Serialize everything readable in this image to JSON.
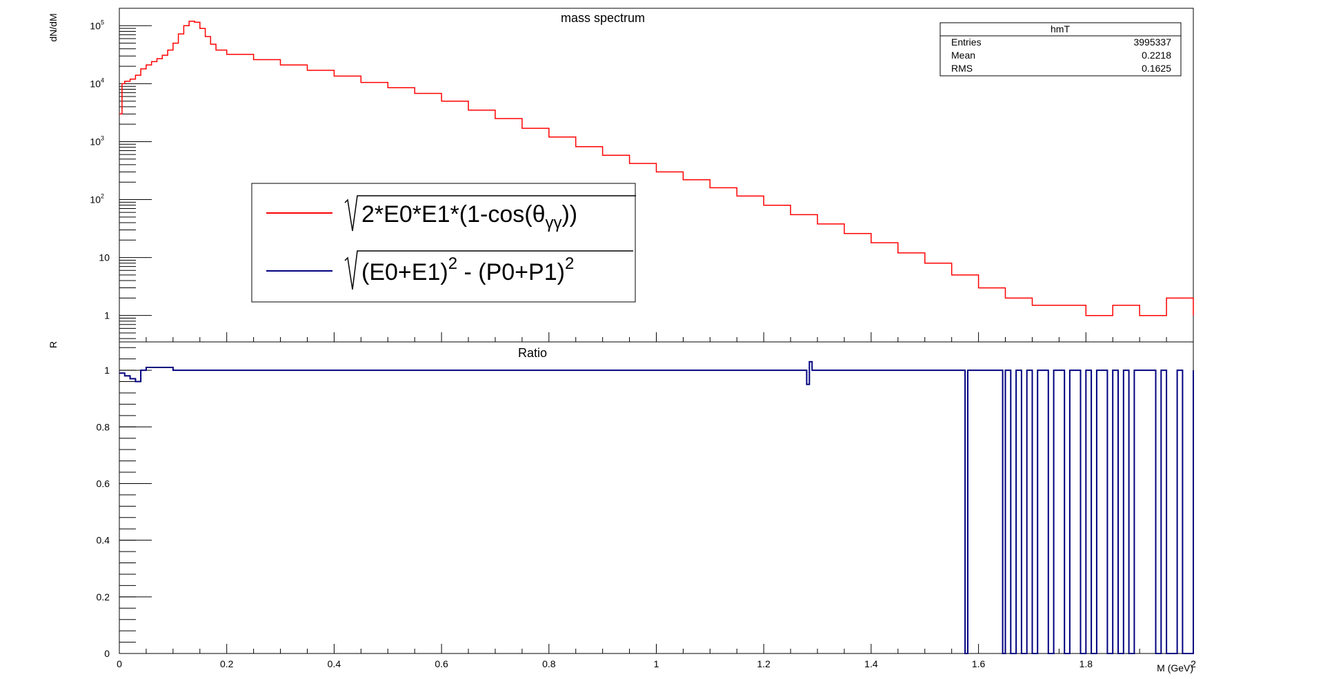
{
  "colors": {
    "red": "#ff0000",
    "blue": "#00007f",
    "axis": "#000000",
    "bg": "#ffffff"
  },
  "top_panel": {
    "title": "mass spectrum",
    "y_label": "dN/dM",
    "y_ticks": [
      {
        "value": 1,
        "base": "1",
        "exp": ""
      },
      {
        "value": 10,
        "base": "10",
        "exp": ""
      },
      {
        "value": 100,
        "base": "10",
        "exp": "2"
      },
      {
        "value": 1000,
        "base": "10",
        "exp": "3"
      },
      {
        "value": 10000,
        "base": "10",
        "exp": "4"
      },
      {
        "value": 100000,
        "base": "10",
        "exp": "5"
      }
    ],
    "stats_box": {
      "name": "hmT",
      "rows": [
        {
          "label": "Entries",
          "value": "3995337"
        },
        {
          "label": "Mean",
          "value": "0.2218"
        },
        {
          "label": "RMS",
          "value": "0.1625"
        }
      ]
    },
    "legend": {
      "entries": [
        {
          "color_key": "red",
          "formula_main": "2*E0*E1*(1-cos(θ",
          "formula_sub": "γγ",
          "formula_tail": "))"
        },
        {
          "color_key": "blue",
          "formula_a": "(E0+E1)",
          "formula_sup1": "2",
          "formula_b": " - (P0+P1)",
          "formula_sup2": "2"
        }
      ]
    }
  },
  "bottom_panel": {
    "title": "Ratio",
    "y_label": "R",
    "x_label": "M (GeV)",
    "y_ticks": [
      "0",
      "0.2",
      "0.4",
      "0.6",
      "0.8",
      "1"
    ],
    "x_ticks": [
      "0",
      "0.2",
      "0.4",
      "0.6",
      "0.8",
      "1",
      "1.2",
      "1.4",
      "1.6",
      "1.8",
      "2"
    ]
  },
  "chart_data": [
    {
      "type": "line",
      "title": "mass spectrum",
      "ylabel": "dN/dM",
      "xlim": [
        0,
        2
      ],
      "ylim": [
        0.35,
        200000
      ],
      "log_y": true,
      "grid": false,
      "histogram_step": true,
      "legend_position": "center-left",
      "series": [
        {
          "color": "#ff0000",
          "points": [
            [
              0.0,
              3000
            ],
            [
              0.005,
              10000
            ],
            [
              0.01,
              11000
            ],
            [
              0.02,
              12000
            ],
            [
              0.03,
              14000
            ],
            [
              0.04,
              18000
            ],
            [
              0.05,
              21000
            ],
            [
              0.06,
              24000
            ],
            [
              0.07,
              27000
            ],
            [
              0.08,
              31000
            ],
            [
              0.09,
              38000
            ],
            [
              0.1,
              50000
            ],
            [
              0.11,
              72000
            ],
            [
              0.12,
              100000
            ],
            [
              0.13,
              120000
            ],
            [
              0.14,
              115000
            ],
            [
              0.15,
              90000
            ],
            [
              0.16,
              65000
            ],
            [
              0.17,
              48000
            ],
            [
              0.18,
              38000
            ],
            [
              0.2,
              32000
            ],
            [
              0.25,
              26000
            ],
            [
              0.3,
              21000
            ],
            [
              0.35,
              17000
            ],
            [
              0.4,
              13500
            ],
            [
              0.45,
              10500
            ],
            [
              0.5,
              8500
            ],
            [
              0.55,
              6800
            ],
            [
              0.6,
              5000
            ],
            [
              0.65,
              3500
            ],
            [
              0.7,
              2500
            ],
            [
              0.75,
              1700
            ],
            [
              0.8,
              1200
            ],
            [
              0.85,
              820
            ],
            [
              0.9,
              580
            ],
            [
              0.95,
              420
            ],
            [
              1.0,
              300
            ],
            [
              1.05,
              220
            ],
            [
              1.1,
              160
            ],
            [
              1.15,
              115
            ],
            [
              1.2,
              80
            ],
            [
              1.25,
              55
            ],
            [
              1.3,
              38
            ],
            [
              1.35,
              26
            ],
            [
              1.4,
              18
            ],
            [
              1.45,
              12
            ],
            [
              1.5,
              8
            ],
            [
              1.55,
              5
            ],
            [
              1.6,
              3
            ],
            [
              1.65,
              2
            ],
            [
              1.7,
              1.5
            ],
            [
              1.75,
              1.5
            ],
            [
              1.8,
              1
            ],
            [
              1.85,
              1.5
            ],
            [
              1.9,
              1
            ],
            [
              1.95,
              2
            ],
            [
              2.0,
              1
            ]
          ]
        }
      ]
    },
    {
      "type": "line",
      "title": "Ratio",
      "xlabel": "M (GeV)",
      "ylabel": "R",
      "xlim": [
        0,
        2
      ],
      "ylim": [
        0,
        1.1
      ],
      "grid": false,
      "histogram_step": true,
      "series": [
        {
          "color": "#00007f",
          "points": [
            [
              0,
              0.99
            ],
            [
              0.01,
              0.98
            ],
            [
              0.02,
              0.97
            ],
            [
              0.03,
              0.96
            ],
            [
              0.04,
              1.0
            ],
            [
              0.05,
              1.01
            ],
            [
              0.06,
              1.01
            ],
            [
              0.1,
              1.0
            ],
            [
              0.5,
              1.0
            ],
            [
              0.9,
              1.0
            ],
            [
              1.28,
              0.95
            ],
            [
              1.285,
              1.03
            ],
            [
              1.29,
              1.0
            ],
            [
              1.57,
              1.0
            ],
            [
              1.575,
              0
            ],
            [
              1.58,
              1.0
            ],
            [
              1.64,
              1.0
            ],
            [
              1.645,
              0
            ],
            [
              1.65,
              1.0
            ],
            [
              1.66,
              0
            ],
            [
              1.67,
              1.0
            ],
            [
              1.68,
              0
            ],
            [
              1.69,
              1.0
            ],
            [
              1.7,
              0
            ],
            [
              1.71,
              1.0
            ],
            [
              1.72,
              1.0
            ],
            [
              1.73,
              0
            ],
            [
              1.74,
              1.0
            ],
            [
              1.76,
              0
            ],
            [
              1.77,
              1.0
            ],
            [
              1.79,
              0
            ],
            [
              1.8,
              1.0
            ],
            [
              1.81,
              0
            ],
            [
              1.82,
              1.0
            ],
            [
              1.84,
              0
            ],
            [
              1.85,
              1.0
            ],
            [
              1.86,
              0
            ],
            [
              1.87,
              1.0
            ],
            [
              1.88,
              0
            ],
            [
              1.89,
              1.0
            ],
            [
              1.93,
              0
            ],
            [
              1.94,
              1.0
            ],
            [
              1.95,
              0
            ],
            [
              1.97,
              1.0
            ],
            [
              1.98,
              0
            ],
            [
              2.0,
              1.0
            ]
          ]
        }
      ]
    }
  ]
}
